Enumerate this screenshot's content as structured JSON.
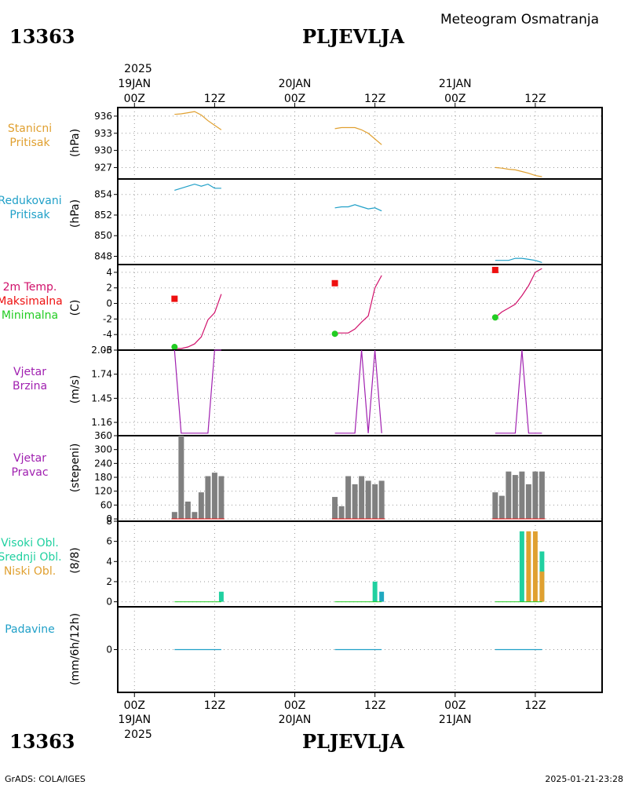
{
  "header": {
    "station_id": "13363",
    "station_name": "PLJEVLJA",
    "product": "Meteogram Osmatranja"
  },
  "footer": {
    "credit": "GrADS: COLA/IGES",
    "timestamp": "2025-01-21-23:28"
  },
  "time_axis": {
    "top_year": "2025",
    "bottom_year": "2025",
    "ticks": [
      {
        "t": 0,
        "hour": "00Z",
        "date": "19JAN"
      },
      {
        "t": 12,
        "hour": "12Z",
        "date": ""
      },
      {
        "t": 24,
        "hour": "00Z",
        "date": "20JAN"
      },
      {
        "t": 36,
        "hour": "12Z",
        "date": ""
      },
      {
        "t": 48,
        "hour": "00Z",
        "date": "21JAN"
      },
      {
        "t": 60,
        "hour": "12Z",
        "date": ""
      }
    ]
  },
  "colors": {
    "station_pressure": "#e0a030",
    "reduced_pressure": "#20a0c8",
    "temperature": "#d0106a",
    "max_temp": "#ee1010",
    "min_temp": "#22cc22",
    "wind": "#a020b0",
    "wind_dir_bars": "#808080",
    "high_cloud": "#20d0a0",
    "mid_cloud": "#20a8c0",
    "low_cloud": "#e0a030",
    "precip": "#20a0c8"
  },
  "chart_data": [
    {
      "type": "line",
      "panel": "station_pressure",
      "label_lines": [
        "Stanicni",
        "Pritisak"
      ],
      "ylabel": "(hPa)",
      "ylim": [
        925,
        937.5
      ],
      "yticks": [
        927,
        930,
        933,
        936
      ],
      "x_unit": "hours since 19JAN 00Z",
      "series": [
        {
          "values": [
            [
              6,
              936.3
            ],
            [
              7,
              936.4
            ],
            [
              8,
              936.6
            ],
            [
              9,
              936.8
            ],
            [
              10,
              936.2
            ],
            [
              11,
              935.2
            ],
            [
              12,
              934.4
            ],
            [
              13,
              933.6
            ]
          ]
        },
        {
          "values": [
            [
              30,
              933.8
            ],
            [
              31,
              934.0
            ],
            [
              32,
              934.0
            ],
            [
              33,
              934.0
            ],
            [
              34,
              933.6
            ],
            [
              35,
              933.0
            ],
            [
              36,
              932.0
            ],
            [
              37,
              931.0
            ]
          ]
        },
        {
          "values": [
            [
              54,
              927.0
            ],
            [
              55,
              926.9
            ],
            [
              56,
              926.7
            ],
            [
              57,
              926.6
            ],
            [
              58,
              926.3
            ],
            [
              59,
              926.0
            ],
            [
              60,
              925.6
            ],
            [
              61,
              925.4
            ]
          ]
        }
      ]
    },
    {
      "type": "line",
      "panel": "reduced_pressure",
      "label_lines": [
        "Redukovani",
        "Pritisak"
      ],
      "ylabel": "(hPa)",
      "ylim": [
        847.2,
        855.5
      ],
      "yticks": [
        848,
        850,
        852,
        854
      ],
      "series": [
        {
          "values": [
            [
              6,
              854.4
            ],
            [
              7,
              854.6
            ],
            [
              8,
              854.8
            ],
            [
              9,
              855.0
            ],
            [
              10,
              854.8
            ],
            [
              11,
              855.0
            ],
            [
              12,
              854.6
            ],
            [
              13,
              854.6
            ]
          ]
        },
        {
          "values": [
            [
              30,
              852.7
            ],
            [
              31,
              852.8
            ],
            [
              32,
              852.8
            ],
            [
              33,
              853.0
            ],
            [
              34,
              852.8
            ],
            [
              35,
              852.6
            ],
            [
              36,
              852.7
            ],
            [
              37,
              852.4
            ]
          ]
        },
        {
          "values": [
            [
              54,
              847.6
            ],
            [
              55,
              847.6
            ],
            [
              56,
              847.6
            ],
            [
              57,
              847.8
            ],
            [
              58,
              847.8
            ],
            [
              59,
              847.7
            ],
            [
              60,
              847.6
            ],
            [
              61,
              847.4
            ]
          ]
        }
      ]
    },
    {
      "type": "line",
      "panel": "temperature",
      "label_lines": [
        "2m Temp.",
        "Maksimalna",
        "Minimalna"
      ],
      "ylabel": "(C)",
      "ylim": [
        -6,
        5
      ],
      "yticks": [
        -6,
        -4,
        -2,
        0,
        2,
        4
      ],
      "series": [
        {
          "values": [
            [
              6,
              -5.8
            ],
            [
              7,
              -5.8
            ],
            [
              8,
              -5.6
            ],
            [
              9,
              -5.2
            ],
            [
              10,
              -4.3
            ],
            [
              11,
              -2.1
            ],
            [
              12,
              -1.2
            ],
            [
              13,
              1.2
            ]
          ]
        },
        {
          "values": [
            [
              30,
              -3.8
            ],
            [
              31,
              -3.8
            ],
            [
              32,
              -3.8
            ],
            [
              33,
              -3.3
            ],
            [
              34,
              -2.4
            ],
            [
              35,
              -1.6
            ],
            [
              36,
              2.0
            ],
            [
              37,
              3.6
            ]
          ]
        },
        {
          "values": [
            [
              54,
              -1.8
            ],
            [
              55,
              -1.1
            ],
            [
              56,
              -0.6
            ],
            [
              57,
              -0.1
            ],
            [
              58,
              1.0
            ],
            [
              59,
              2.3
            ],
            [
              60,
              4.0
            ],
            [
              61,
              4.5
            ]
          ]
        }
      ],
      "max_points": [
        [
          6,
          0.6
        ],
        [
          30,
          2.6
        ],
        [
          54,
          4.3
        ]
      ],
      "min_points": [
        [
          6,
          -5.6
        ],
        [
          30,
          -3.9
        ],
        [
          54,
          -1.8
        ]
      ]
    },
    {
      "type": "line",
      "panel": "wind_speed",
      "label_lines": [
        "Vjetar",
        "Brzina"
      ],
      "ylabel": "(m/s)",
      "ylim": [
        1.0,
        2.03
      ],
      "yticks": [
        1.16,
        1.45,
        1.74,
        2.03
      ],
      "series": [
        {
          "values": [
            [
              6,
              2.03
            ],
            [
              7,
              1.03
            ],
            [
              8,
              1.03
            ],
            [
              9,
              1.03
            ],
            [
              10,
              1.03
            ],
            [
              11,
              1.03
            ],
            [
              12,
              2.03
            ],
            [
              13,
              2.03
            ]
          ]
        },
        {
          "values": [
            [
              30,
              1.03
            ],
            [
              31,
              1.03
            ],
            [
              32,
              1.03
            ],
            [
              33,
              1.03
            ],
            [
              34,
              2.03
            ],
            [
              35,
              1.03
            ],
            [
              36,
              2.03
            ],
            [
              37,
              1.03
            ]
          ]
        },
        {
          "values": [
            [
              54,
              1.03
            ],
            [
              55,
              1.03
            ],
            [
              56,
              1.03
            ],
            [
              57,
              1.03
            ],
            [
              58,
              2.03
            ],
            [
              59,
              1.03
            ],
            [
              60,
              1.03
            ],
            [
              61,
              1.03
            ]
          ]
        }
      ]
    },
    {
      "type": "bar",
      "panel": "wind_direction",
      "label_lines": [
        "Vjetar",
        "Pravac"
      ],
      "ylabel": "(stepeni)",
      "ylim": [
        -10,
        360
      ],
      "yticks": [
        0,
        60,
        120,
        180,
        240,
        300,
        360
      ],
      "bars": [
        [
          6,
          30
        ],
        [
          7,
          360
        ],
        [
          8,
          75
        ],
        [
          9,
          30
        ],
        [
          10,
          115
        ],
        [
          11,
          185
        ],
        [
          12,
          200
        ],
        [
          13,
          185
        ],
        [
          30,
          95
        ],
        [
          31,
          55
        ],
        [
          32,
          185
        ],
        [
          33,
          150
        ],
        [
          34,
          185
        ],
        [
          35,
          165
        ],
        [
          36,
          150
        ],
        [
          37,
          165
        ],
        [
          54,
          115
        ],
        [
          55,
          100
        ],
        [
          56,
          205
        ],
        [
          57,
          190
        ],
        [
          58,
          205
        ],
        [
          59,
          150
        ],
        [
          60,
          205
        ],
        [
          61,
          205
        ]
      ]
    },
    {
      "type": "bar",
      "panel": "clouds",
      "label_lines": [
        "Visoki Obl.",
        "Srednji Obl.",
        "Niski Obl."
      ],
      "ylabel": "(8/8)",
      "ylim": [
        -0.5,
        8
      ],
      "yticks": [
        0,
        2,
        4,
        6,
        8
      ],
      "high": [
        [
          13,
          1
        ],
        [
          36,
          2
        ],
        [
          58,
          7
        ],
        [
          61,
          5
        ]
      ],
      "mid": [
        [
          37,
          1
        ]
      ],
      "low": [
        [
          59,
          7
        ],
        [
          60,
          7
        ],
        [
          61,
          3
        ]
      ]
    },
    {
      "type": "line",
      "panel": "precipitation",
      "label_lines": [
        "Padavine"
      ],
      "ylabel": "(mm/6h/12h)",
      "ylim": [
        -5,
        5
      ],
      "yticks": [
        0
      ],
      "series": [
        {
          "values": [
            [
              6,
              0
            ],
            [
              13,
              0
            ]
          ]
        },
        {
          "values": [
            [
              30,
              0
            ],
            [
              37,
              0
            ]
          ]
        },
        {
          "values": [
            [
              54,
              0
            ],
            [
              61,
              0
            ]
          ]
        }
      ]
    }
  ]
}
